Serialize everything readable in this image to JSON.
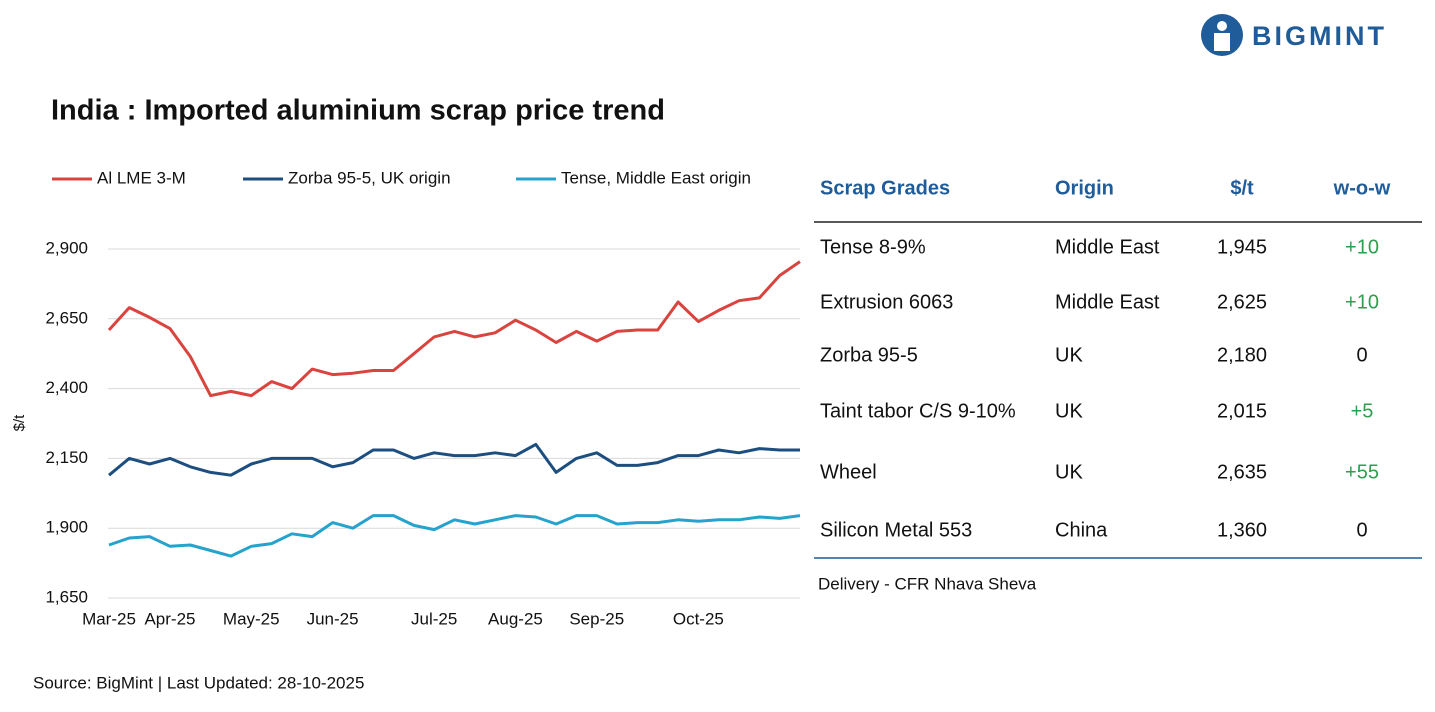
{
  "header": {
    "logo_text": "BIGMINT"
  },
  "chart_data": {
    "type": "line",
    "title": "India : Imported aluminium scrap price trend",
    "y_label": "$/t",
    "categories": [
      "Mar-25",
      null,
      null,
      "Apr-25",
      null,
      null,
      null,
      "May-25",
      null,
      null,
      null,
      "Jun-25",
      null,
      null,
      null,
      null,
      "Jul-25",
      null,
      null,
      null,
      "Aug-25",
      null,
      null,
      null,
      "Sep-25",
      null,
      null,
      null,
      null,
      "Oct-25",
      null,
      null,
      null,
      null,
      null
    ],
    "series": [
      {
        "name": "Al LME 3-M",
        "color": "#d9443f",
        "values": [
          2610,
          2690,
          2655,
          2615,
          2515,
          2375,
          2390,
          2375,
          2425,
          2400,
          2470,
          2450,
          2455,
          2465,
          2465,
          2525,
          2585,
          2605,
          2585,
          2600,
          2645,
          2610,
          2565,
          2605,
          2570,
          2605,
          2610,
          2610,
          2710,
          2640,
          2680,
          2715,
          2725,
          2805,
          2855
        ]
      },
      {
        "name": "Zorba 95-5, UK origin",
        "color": "#1c4e80",
        "values": [
          2090,
          2150,
          2130,
          2150,
          2120,
          2100,
          2090,
          2130,
          2150,
          2150,
          2150,
          2120,
          2135,
          2180,
          2180,
          2150,
          2170,
          2160,
          2160,
          2170,
          2160,
          2200,
          2100,
          2150,
          2170,
          2125,
          2125,
          2135,
          2160,
          2160,
          2180,
          2170,
          2185,
          2180,
          2180
        ]
      },
      {
        "name": "Tense, Middle East origin",
        "color": "#26a3cc",
        "values": [
          1840,
          1865,
          1870,
          1835,
          1840,
          1820,
          1800,
          1835,
          1845,
          1880,
          1870,
          1920,
          1900,
          1945,
          1945,
          1910,
          1895,
          1930,
          1915,
          1930,
          1945,
          1940,
          1915,
          1945,
          1945,
          1915,
          1920,
          1920,
          1930,
          1925,
          1930,
          1930,
          1940,
          1935,
          1945
        ]
      }
    ],
    "ylim": [
      1650,
      2900
    ],
    "yticks": [
      {
        "value": 1650,
        "label": "1,650"
      },
      {
        "value": 1900,
        "label": "1,900"
      },
      {
        "value": 2150,
        "label": "2,150"
      },
      {
        "value": 2400,
        "label": "2,400"
      },
      {
        "value": 2650,
        "label": "2,650"
      },
      {
        "value": 2900,
        "label": "2,900"
      }
    ],
    "grid": true,
    "legend": "top"
  },
  "table": {
    "headers": [
      "Scrap Grades",
      "Origin",
      "$/t",
      "w-o-w"
    ],
    "rows": [
      [
        "Tense 8-9%",
        "Middle East",
        "1,945",
        "+10"
      ],
      [
        "Extrusion 6063",
        "Middle East",
        "2,625",
        "+10"
      ],
      [
        "Zorba 95-5",
        "UK",
        "2,180",
        "0"
      ],
      [
        "Taint tabor C/S 9-10%",
        "UK",
        "2,015",
        "+5"
      ],
      [
        "Wheel",
        "UK",
        "2,635",
        "+55"
      ],
      [
        "Silicon Metal 553",
        "China",
        "1,360",
        "0"
      ]
    ]
  },
  "note": "Delivery - CFR Nhava Sheva",
  "source": "Source: BigMint | Last Updated: 28-10-2025"
}
